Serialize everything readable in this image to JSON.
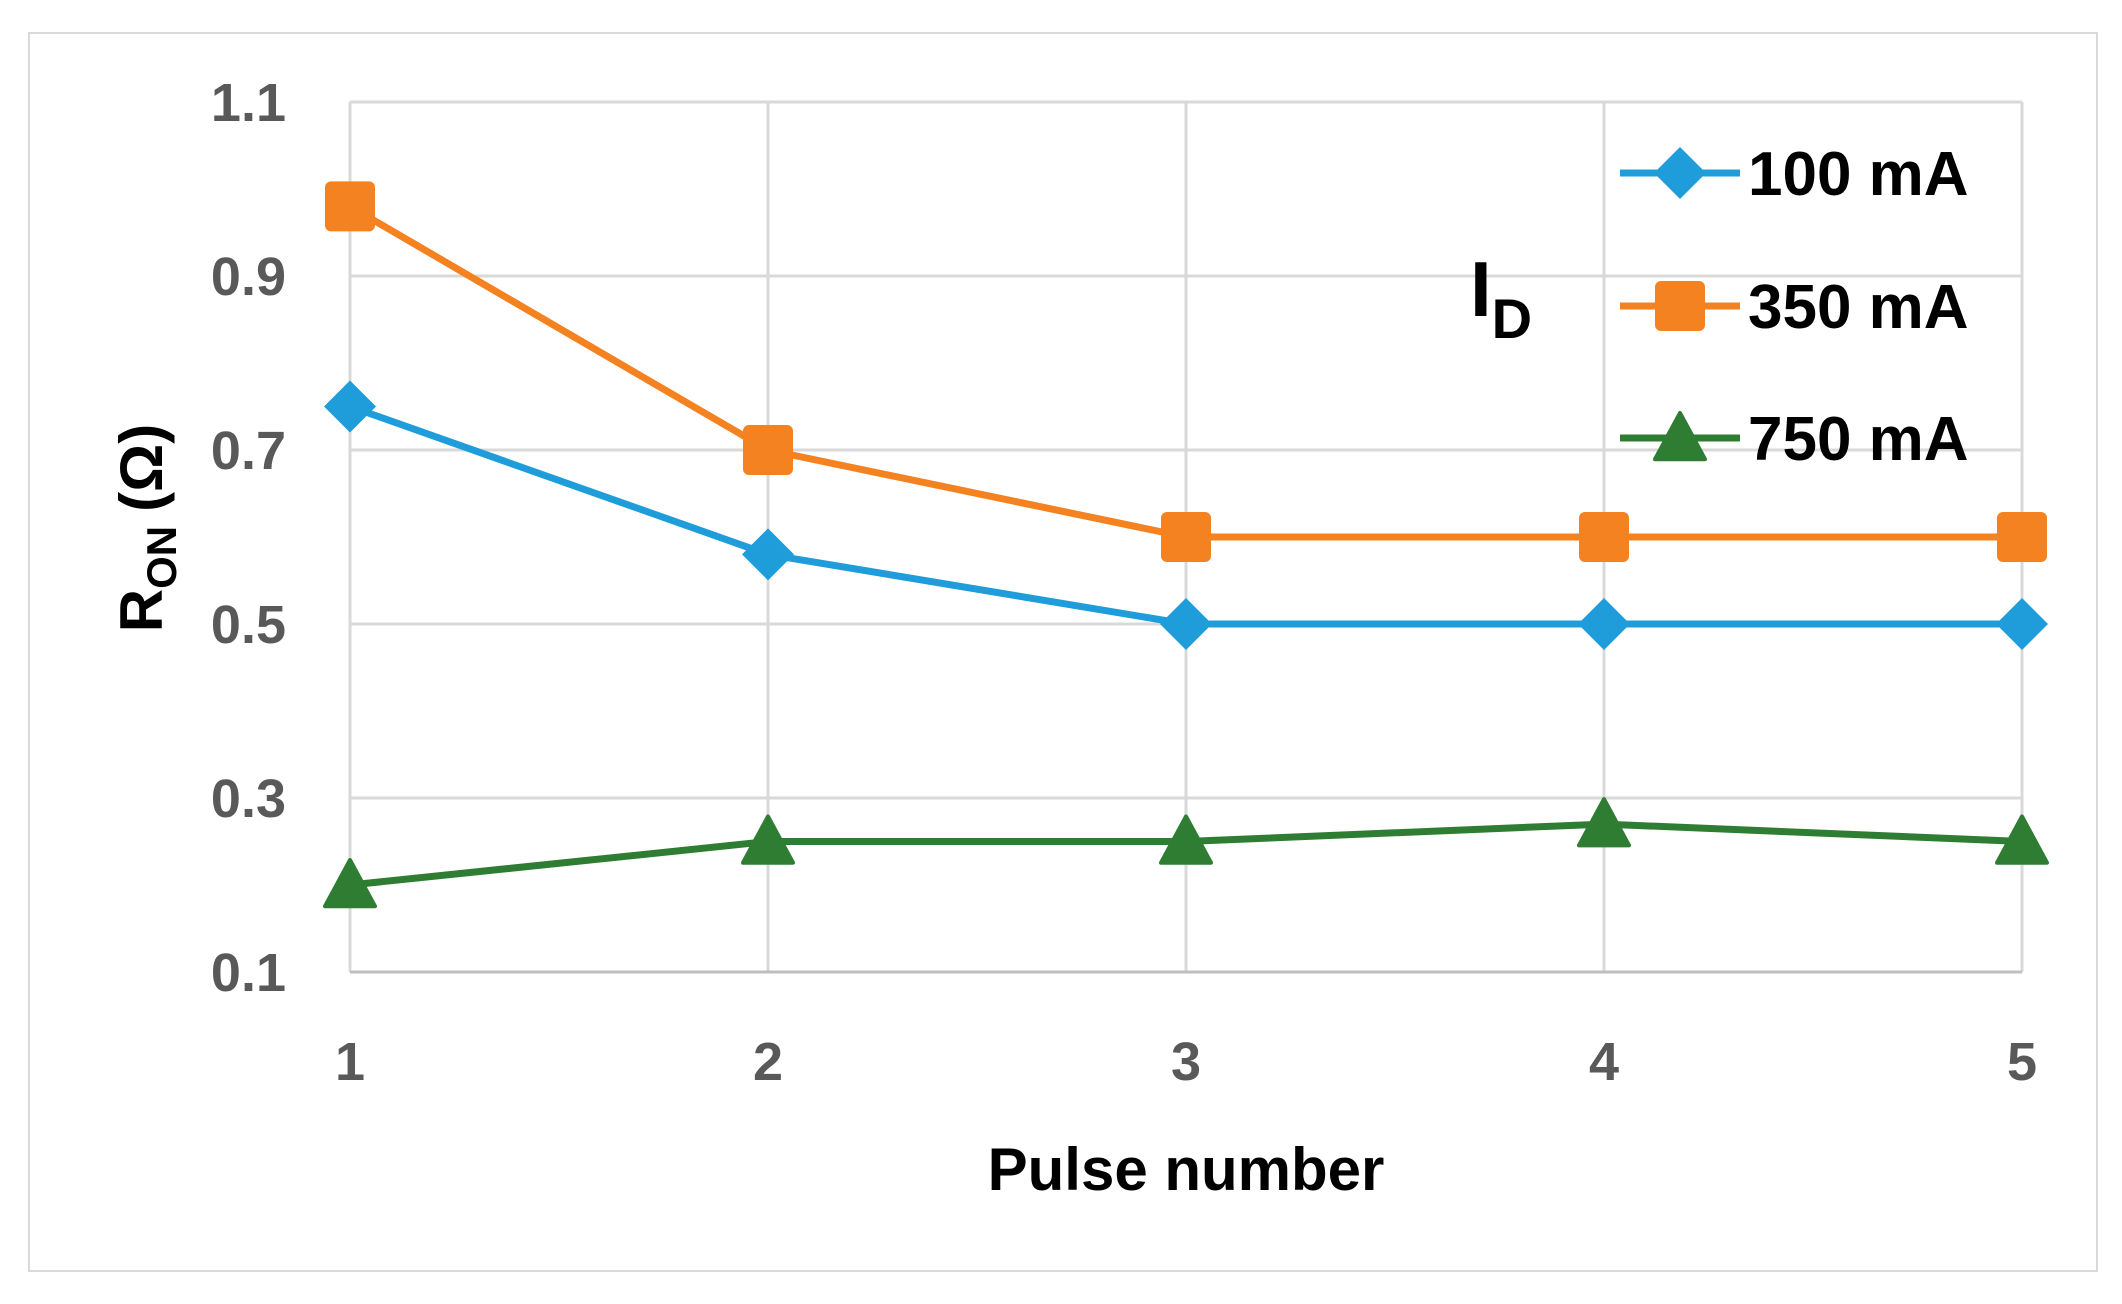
{
  "chart_data": {
    "type": "line",
    "x": [
      1,
      2,
      3,
      4,
      5
    ],
    "xlabel": "Pulse number",
    "ylabel": {
      "main": "R",
      "sub": "ON",
      "unit": "(Ω)"
    },
    "ylim": [
      0.1,
      1.1
    ],
    "yticks": [
      "0.1",
      "0.3",
      "0.5",
      "0.7",
      "0.9",
      "1.1"
    ],
    "xticks": [
      "1",
      "2",
      "3",
      "4",
      "5"
    ],
    "grid": true,
    "legend": {
      "title": {
        "main": "I",
        "sub": "D"
      },
      "placement": "top-right"
    },
    "series": [
      {
        "name": "100 mA",
        "values": [
          0.75,
          0.58,
          0.5,
          0.5,
          0.5
        ],
        "color": "#1f9ddb",
        "marker": "diamond"
      },
      {
        "name": "350 mA",
        "values": [
          0.98,
          0.7,
          0.6,
          0.6,
          0.6
        ],
        "color": "#f58220",
        "marker": "square"
      },
      {
        "name": "750 mA",
        "values": [
          0.2,
          0.25,
          0.25,
          0.27,
          0.25
        ],
        "color": "#2e7d32",
        "marker": "triangle"
      }
    ]
  }
}
